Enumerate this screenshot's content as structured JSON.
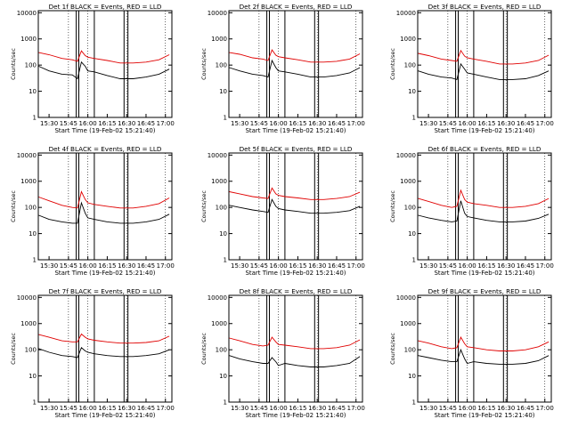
{
  "figure": {
    "xlabel": "Start Time (19-Feb-02 15:21:40)",
    "ylabel": "Counts/sec",
    "colors": {
      "events": "#000000",
      "lld": "#e00000",
      "axes": "#000000",
      "grid": "#000000"
    }
  },
  "chart_data": [
    {
      "type": "line",
      "title": "Det 1f BLACK = Events, RED = LLD",
      "ylog": true,
      "x_ticks": [
        "15:30",
        "15:45",
        "16:00",
        "16:15",
        "16:30",
        "16:45",
        "17:00"
      ],
      "y_ticks": [
        "1",
        "10",
        "100",
        "1000",
        "10000"
      ],
      "xlim": [
        "15:21:40",
        "17:05"
      ],
      "ylim": [
        1,
        12000
      ],
      "vertical_markers": [
        "15:51",
        "15:53",
        "16:05",
        "16:28",
        "16:31"
      ],
      "series": [
        {
          "name": "Events",
          "color": "#000000",
          "x": [
            "15:22",
            "15:30",
            "15:40",
            "15:48",
            "15:52",
            "15:55",
            "15:58",
            "16:00",
            "16:05",
            "16:15",
            "16:25",
            "16:35",
            "16:45",
            "16:55",
            "17:03"
          ],
          "values": [
            90,
            60,
            45,
            42,
            30,
            130,
            90,
            60,
            55,
            40,
            30,
            30,
            35,
            45,
            70
          ]
        },
        {
          "name": "LLD",
          "color": "#e00000",
          "x": [
            "15:22",
            "15:30",
            "15:40",
            "15:48",
            "15:52",
            "15:55",
            "15:58",
            "16:00",
            "16:05",
            "16:15",
            "16:25",
            "16:35",
            "16:45",
            "16:55",
            "17:03"
          ],
          "values": [
            300,
            250,
            180,
            160,
            140,
            350,
            230,
            200,
            180,
            150,
            120,
            120,
            130,
            160,
            250
          ]
        }
      ]
    },
    {
      "type": "line",
      "title": "Det 2f BLACK = Events, RED = LLD",
      "ylog": true,
      "x_ticks": [
        "15:30",
        "15:45",
        "16:00",
        "16:15",
        "16:30",
        "16:45",
        "17:00"
      ],
      "y_ticks": [
        "1",
        "10",
        "100",
        "1000",
        "10000"
      ],
      "xlim": [
        "15:21:40",
        "17:05"
      ],
      "ylim": [
        1,
        12000
      ],
      "vertical_markers": [
        "15:51",
        "15:53",
        "16:05",
        "16:28",
        "16:31"
      ],
      "series": [
        {
          "name": "Events",
          "color": "#000000",
          "x": [
            "15:22",
            "15:30",
            "15:40",
            "15:48",
            "15:52",
            "15:55",
            "15:58",
            "16:00",
            "16:05",
            "16:15",
            "16:25",
            "16:35",
            "16:45",
            "16:55",
            "17:03"
          ],
          "values": [
            80,
            60,
            45,
            40,
            35,
            150,
            80,
            60,
            55,
            45,
            35,
            35,
            40,
            50,
            80
          ]
        },
        {
          "name": "LLD",
          "color": "#e00000",
          "x": [
            "15:22",
            "15:30",
            "15:40",
            "15:48",
            "15:52",
            "15:55",
            "15:58",
            "16:00",
            "16:05",
            "16:15",
            "16:25",
            "16:35",
            "16:45",
            "16:55",
            "17:03"
          ],
          "values": [
            300,
            260,
            190,
            170,
            150,
            380,
            240,
            210,
            190,
            160,
            130,
            130,
            140,
            170,
            270
          ]
        }
      ]
    },
    {
      "type": "line",
      "title": "Det 3f BLACK = Events, RED = LLD",
      "ylog": true,
      "x_ticks": [
        "15:30",
        "15:45",
        "16:00",
        "16:15",
        "16:30",
        "16:45",
        "17:00"
      ],
      "y_ticks": [
        "1",
        "10",
        "100",
        "1000",
        "10000"
      ],
      "xlim": [
        "15:21:40",
        "17:05"
      ],
      "ylim": [
        1,
        12000
      ],
      "vertical_markers": [
        "15:51",
        "15:53",
        "16:05",
        "16:28",
        "16:31"
      ],
      "series": [
        {
          "name": "Events",
          "color": "#000000",
          "x": [
            "15:22",
            "15:30",
            "15:40",
            "15:48",
            "15:52",
            "15:55",
            "15:58",
            "16:00",
            "16:05",
            "16:15",
            "16:25",
            "16:35",
            "16:45",
            "16:55",
            "17:03"
          ],
          "values": [
            60,
            45,
            35,
            32,
            28,
            110,
            70,
            50,
            45,
            35,
            28,
            28,
            30,
            40,
            60
          ]
        },
        {
          "name": "LLD",
          "color": "#e00000",
          "x": [
            "15:22",
            "15:30",
            "15:40",
            "15:48",
            "15:52",
            "15:55",
            "15:58",
            "16:00",
            "16:05",
            "16:15",
            "16:25",
            "16:35",
            "16:45",
            "16:55",
            "17:03"
          ],
          "values": [
            280,
            230,
            170,
            150,
            140,
            360,
            220,
            190,
            170,
            140,
            110,
            110,
            120,
            150,
            240
          ]
        }
      ]
    },
    {
      "type": "line",
      "title": "Det 4f BLACK = Events, RED = LLD",
      "ylog": true,
      "x_ticks": [
        "15:30",
        "15:45",
        "16:00",
        "16:15",
        "16:30",
        "16:45",
        "17:00"
      ],
      "y_ticks": [
        "1",
        "10",
        "100",
        "1000",
        "10000"
      ],
      "xlim": [
        "15:21:40",
        "17:05"
      ],
      "ylim": [
        1,
        12000
      ],
      "vertical_markers": [
        "15:51",
        "15:53",
        "16:05",
        "16:28",
        "16:31"
      ],
      "series": [
        {
          "name": "Events",
          "color": "#000000",
          "x": [
            "15:22",
            "15:30",
            "15:40",
            "15:48",
            "15:52",
            "15:55",
            "15:58",
            "16:00",
            "16:05",
            "16:15",
            "16:25",
            "16:35",
            "16:45",
            "16:55",
            "17:03"
          ],
          "values": [
            50,
            35,
            28,
            25,
            25,
            150,
            60,
            40,
            35,
            28,
            25,
            25,
            28,
            35,
            55
          ]
        },
        {
          "name": "LLD",
          "color": "#e00000",
          "x": [
            "15:22",
            "15:30",
            "15:40",
            "15:48",
            "15:52",
            "15:55",
            "15:58",
            "16:00",
            "16:05",
            "16:15",
            "16:25",
            "16:35",
            "16:45",
            "16:55",
            "17:03"
          ],
          "values": [
            250,
            180,
            120,
            100,
            95,
            400,
            200,
            150,
            130,
            110,
            95,
            95,
            110,
            140,
            230
          ]
        }
      ]
    },
    {
      "type": "line",
      "title": "Det 5f BLACK = Events, RED = LLD",
      "ylog": true,
      "x_ticks": [
        "15:30",
        "15:45",
        "16:00",
        "16:15",
        "16:30",
        "16:45",
        "17:00"
      ],
      "y_ticks": [
        "1",
        "10",
        "100",
        "1000",
        "10000"
      ],
      "xlim": [
        "15:21:40",
        "17:05"
      ],
      "ylim": [
        1,
        12000
      ],
      "vertical_markers": [
        "15:51",
        "15:53",
        "16:05",
        "16:28",
        "16:31"
      ],
      "series": [
        {
          "name": "Events",
          "color": "#000000",
          "x": [
            "15:22",
            "15:30",
            "15:40",
            "15:48",
            "15:52",
            "15:55",
            "15:58",
            "16:00",
            "16:05",
            "16:15",
            "16:25",
            "16:35",
            "16:45",
            "16:55",
            "17:03"
          ],
          "values": [
            120,
            100,
            80,
            70,
            65,
            200,
            110,
            90,
            80,
            70,
            60,
            60,
            65,
            75,
            110
          ]
        },
        {
          "name": "LLD",
          "color": "#e00000",
          "x": [
            "15:22",
            "15:30",
            "15:40",
            "15:48",
            "15:52",
            "15:55",
            "15:58",
            "16:00",
            "16:05",
            "16:15",
            "16:25",
            "16:35",
            "16:45",
            "16:55",
            "17:03"
          ],
          "values": [
            400,
            330,
            260,
            230,
            220,
            550,
            330,
            290,
            260,
            230,
            200,
            200,
            220,
            260,
            380
          ]
        }
      ]
    },
    {
      "type": "line",
      "title": "Det 6f BLACK = Events, RED = LLD",
      "ylog": true,
      "x_ticks": [
        "15:30",
        "15:45",
        "16:00",
        "16:15",
        "16:30",
        "16:45",
        "17:00"
      ],
      "y_ticks": [
        "1",
        "10",
        "100",
        "1000",
        "10000"
      ],
      "xlim": [
        "15:21:40",
        "17:05"
      ],
      "ylim": [
        1,
        12000
      ],
      "vertical_markers": [
        "15:51",
        "15:53",
        "16:05",
        "16:28",
        "16:31"
      ],
      "series": [
        {
          "name": "Events",
          "color": "#000000",
          "x": [
            "15:22",
            "15:30",
            "15:40",
            "15:48",
            "15:52",
            "15:55",
            "15:58",
            "16:00",
            "16:05",
            "16:15",
            "16:25",
            "16:35",
            "16:45",
            "16:55",
            "17:03"
          ],
          "values": [
            50,
            40,
            32,
            28,
            30,
            180,
            60,
            45,
            40,
            32,
            28,
            28,
            30,
            38,
            55
          ]
        },
        {
          "name": "LLD",
          "color": "#e00000",
          "x": [
            "15:22",
            "15:30",
            "15:40",
            "15:48",
            "15:52",
            "15:55",
            "15:58",
            "16:00",
            "16:05",
            "16:15",
            "16:25",
            "16:35",
            "16:45",
            "16:55",
            "17:03"
          ],
          "values": [
            220,
            170,
            120,
            100,
            110,
            450,
            200,
            160,
            140,
            120,
            100,
            100,
            110,
            140,
            220
          ]
        }
      ]
    },
    {
      "type": "line",
      "title": "Det 7f BLACK = Events, RED = LLD",
      "ylog": true,
      "x_ticks": [
        "15:30",
        "15:45",
        "16:00",
        "16:15",
        "16:30",
        "16:45",
        "17:00"
      ],
      "y_ticks": [
        "1",
        "10",
        "100",
        "1000",
        "10000"
      ],
      "xlim": [
        "15:21:40",
        "17:05"
      ],
      "ylim": [
        1,
        12000
      ],
      "vertical_markers": [
        "15:51",
        "15:53",
        "16:05",
        "16:28",
        "16:31"
      ],
      "series": [
        {
          "name": "Events",
          "color": "#000000",
          "x": [
            "15:22",
            "15:30",
            "15:40",
            "15:48",
            "15:52",
            "15:55",
            "15:58",
            "16:00",
            "16:05",
            "16:15",
            "16:25",
            "16:35",
            "16:45",
            "16:55",
            "17:03"
          ],
          "values": [
            110,
            80,
            60,
            55,
            50,
            120,
            90,
            80,
            70,
            60,
            55,
            55,
            60,
            70,
            100
          ]
        },
        {
          "name": "LLD",
          "color": "#e00000",
          "x": [
            "15:22",
            "15:30",
            "15:40",
            "15:48",
            "15:52",
            "15:55",
            "15:58",
            "16:00",
            "16:05",
            "16:15",
            "16:25",
            "16:35",
            "16:45",
            "16:55",
            "17:03"
          ],
          "values": [
            380,
            300,
            220,
            200,
            200,
            400,
            300,
            260,
            230,
            200,
            180,
            180,
            190,
            220,
            330
          ]
        }
      ]
    },
    {
      "type": "line",
      "title": "Det 8f BLACK = Events, RED = LLD",
      "ylog": true,
      "x_ticks": [
        "15:30",
        "15:45",
        "16:00",
        "16:15",
        "16:30",
        "16:45",
        "17:00"
      ],
      "y_ticks": [
        "1",
        "10",
        "100",
        "1000",
        "10000"
      ],
      "xlim": [
        "15:21:40",
        "17:05"
      ],
      "ylim": [
        1,
        12000
      ],
      "vertical_markers": [
        "15:51",
        "15:53",
        "16:05",
        "16:28",
        "16:31"
      ],
      "series": [
        {
          "name": "Events",
          "color": "#000000",
          "x": [
            "15:22",
            "15:30",
            "15:40",
            "15:48",
            "15:52",
            "15:55",
            "15:58",
            "16:00",
            "16:05",
            "16:15",
            "16:25",
            "16:35",
            "16:45",
            "16:55",
            "17:03"
          ],
          "values": [
            60,
            45,
            35,
            30,
            30,
            50,
            35,
            25,
            30,
            25,
            22,
            22,
            25,
            30,
            55
          ]
        },
        {
          "name": "LLD",
          "color": "#e00000",
          "x": [
            "15:22",
            "15:30",
            "15:40",
            "15:48",
            "15:52",
            "15:55",
            "15:58",
            "16:00",
            "16:05",
            "16:15",
            "16:25",
            "16:35",
            "16:45",
            "16:55",
            "17:03"
          ],
          "values": [
            280,
            220,
            160,
            140,
            150,
            300,
            200,
            160,
            150,
            130,
            110,
            110,
            120,
            150,
            240
          ]
        }
      ]
    },
    {
      "type": "line",
      "title": "Det 9f BLACK = Events, RED = LLD",
      "ylog": true,
      "x_ticks": [
        "15:30",
        "15:45",
        "16:00",
        "16:15",
        "16:30",
        "16:45",
        "17:00"
      ],
      "y_ticks": [
        "1",
        "10",
        "100",
        "1000",
        "10000"
      ],
      "xlim": [
        "15:21:40",
        "17:05"
      ],
      "ylim": [
        1,
        12000
      ],
      "vertical_markers": [
        "15:51",
        "15:53",
        "16:05",
        "16:28",
        "16:31"
      ],
      "series": [
        {
          "name": "Events",
          "color": "#000000",
          "x": [
            "15:22",
            "15:30",
            "15:40",
            "15:48",
            "15:52",
            "15:55",
            "15:58",
            "16:00",
            "16:05",
            "16:15",
            "16:25",
            "16:35",
            "16:45",
            "16:55",
            "17:03"
          ],
          "values": [
            60,
            50,
            40,
            35,
            35,
            100,
            45,
            30,
            35,
            30,
            28,
            28,
            30,
            38,
            60
          ]
        },
        {
          "name": "LLD",
          "color": "#e00000",
          "x": [
            "15:22",
            "15:30",
            "15:40",
            "15:48",
            "15:52",
            "15:55",
            "15:58",
            "16:00",
            "16:05",
            "16:15",
            "16:25",
            "16:35",
            "16:45",
            "16:55",
            "17:03"
          ],
          "values": [
            220,
            180,
            130,
            110,
            120,
            300,
            170,
            130,
            120,
            100,
            90,
            90,
            100,
            130,
            200
          ]
        }
      ]
    }
  ]
}
